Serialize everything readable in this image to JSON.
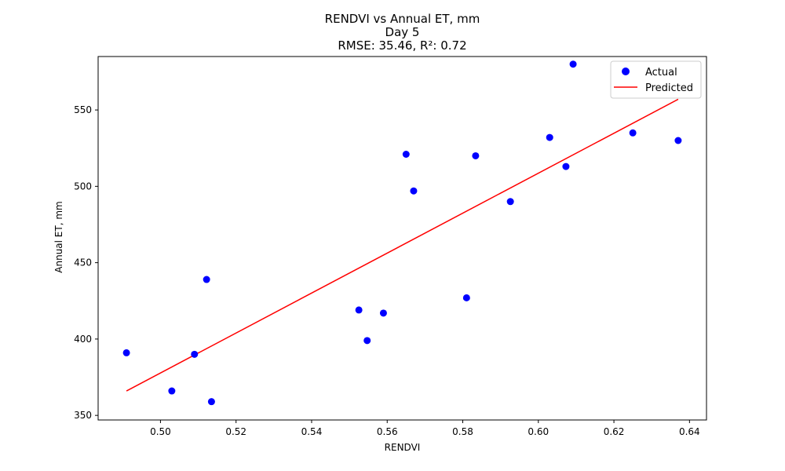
{
  "chart_data": {
    "type": "scatter",
    "title_lines": [
      "RENDVI vs Annual ET, mm",
      "Day 5",
      "RMSE: 35.46, R²: 0.72"
    ],
    "xlabel": "RENDVI",
    "ylabel": "Annual ET, mm",
    "xlim": [
      0.4835,
      0.6445
    ],
    "ylim": [
      347,
      585
    ],
    "xticks": [
      0.5,
      0.52,
      0.54,
      0.56,
      0.58,
      0.6,
      0.62,
      0.64
    ],
    "xtick_labels": [
      "0.50",
      "0.52",
      "0.54",
      "0.56",
      "0.58",
      "0.60",
      "0.62",
      "0.64"
    ],
    "yticks": [
      350,
      400,
      450,
      500,
      550
    ],
    "ytick_labels": [
      "350",
      "400",
      "450",
      "500",
      "550"
    ],
    "grid": false,
    "legend_position": "top-right",
    "series": [
      {
        "name": "Actual",
        "kind": "scatter",
        "color": "#0000ff",
        "points": [
          [
            0.491,
            391
          ],
          [
            0.503,
            366
          ],
          [
            0.509,
            390
          ],
          [
            0.5122,
            439
          ],
          [
            0.5135,
            359
          ],
          [
            0.5525,
            419
          ],
          [
            0.5547,
            399
          ],
          [
            0.559,
            417
          ],
          [
            0.565,
            521
          ],
          [
            0.567,
            497
          ],
          [
            0.581,
            427
          ],
          [
            0.5834,
            520
          ],
          [
            0.5926,
            490
          ],
          [
            0.603,
            532
          ],
          [
            0.6073,
            513
          ],
          [
            0.6092,
            580
          ],
          [
            0.625,
            535
          ],
          [
            0.637,
            530
          ]
        ]
      },
      {
        "name": "Predicted",
        "kind": "line",
        "color": "#ff0000",
        "points": [
          [
            0.491,
            366
          ],
          [
            0.637,
            557
          ]
        ]
      }
    ]
  }
}
